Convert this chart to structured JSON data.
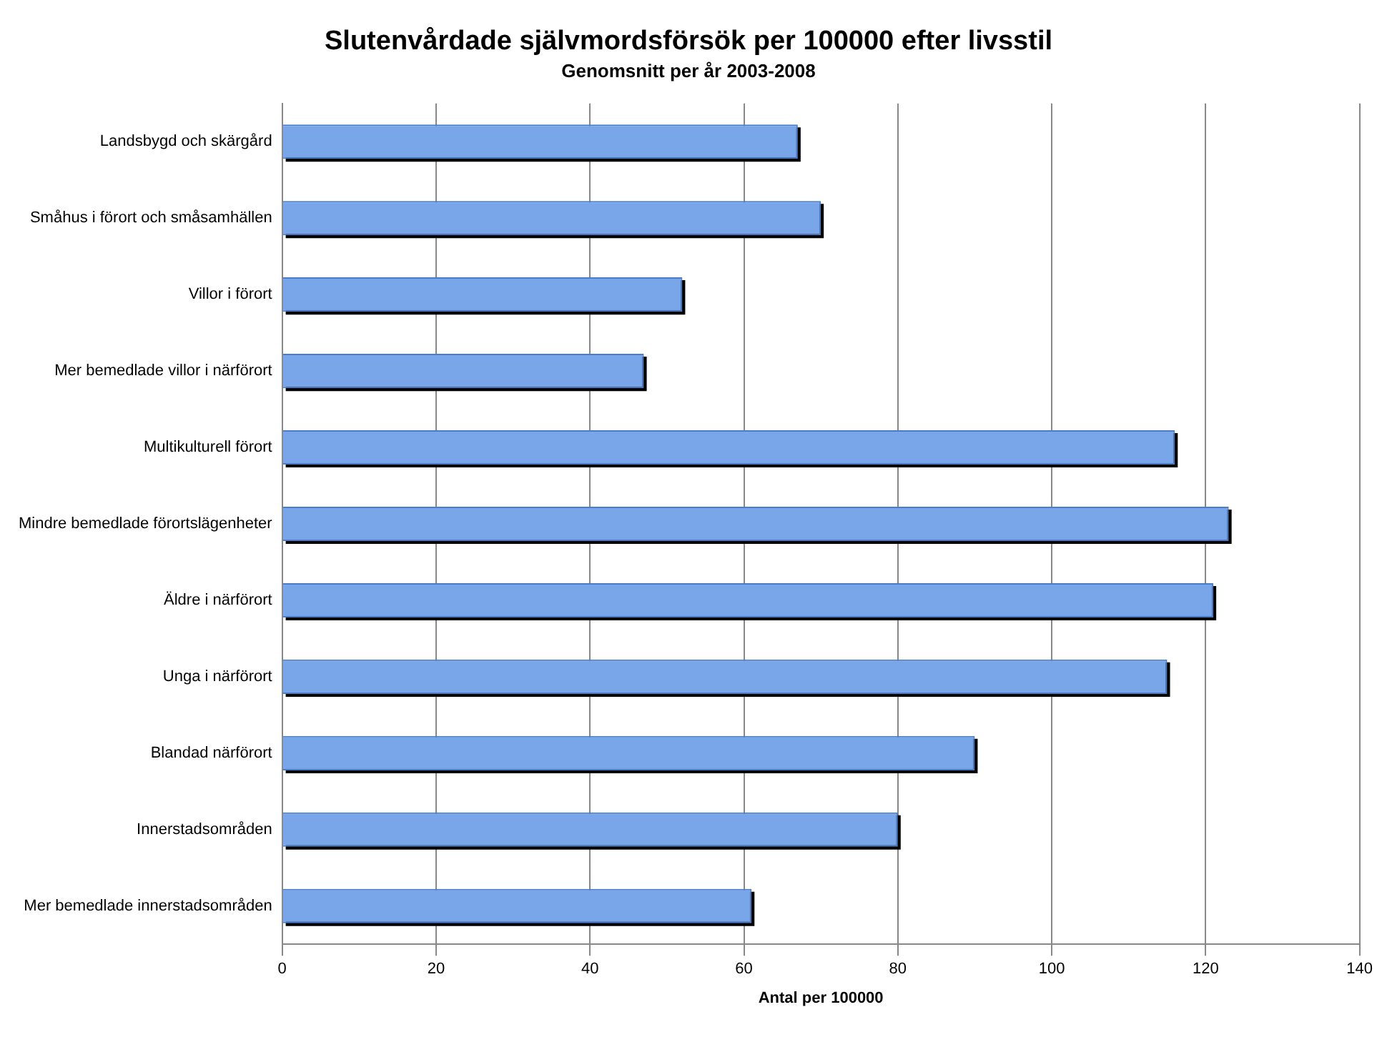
{
  "chart_data": {
    "type": "bar",
    "orientation": "horizontal",
    "title": "Slutenvårdade självmordsförsök per 100000 efter livsstil",
    "subtitle": "Genomsnitt per år 2003-2008",
    "xlabel": "Antal per 100000",
    "categories": [
      "Landsbygd och skärgård",
      "Småhus i förort och småsamhällen",
      "Villor i förort",
      "Mer bemedlade villor i närförort",
      "Multikulturell förort",
      "Mindre bemedlade förortslägenheter",
      "Äldre i närförort",
      "Unga i närförort",
      "Blandad närförort",
      "Innerstadsområden",
      "Mer bemedlade innerstadsområden"
    ],
    "values": [
      67,
      70,
      52,
      47,
      116,
      123,
      121,
      115,
      90,
      80,
      61
    ],
    "color": "#78a6e8",
    "xlim": [
      0,
      140
    ],
    "xticks": [
      0,
      20,
      40,
      60,
      80,
      100,
      120,
      140
    ],
    "grid": "x",
    "legend": false
  }
}
